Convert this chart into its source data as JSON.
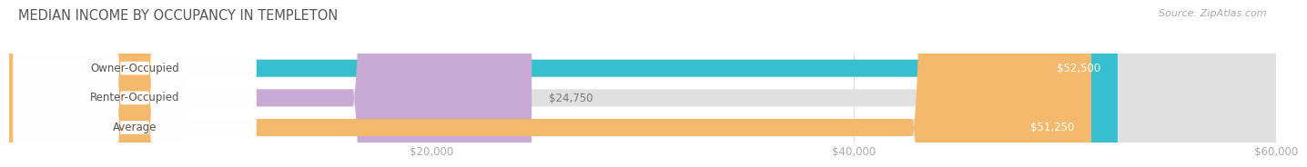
{
  "title": "MEDIAN INCOME BY OCCUPANCY IN TEMPLETON",
  "source": "Source: ZipAtlas.com",
  "categories": [
    "Owner-Occupied",
    "Renter-Occupied",
    "Average"
  ],
  "values": [
    52500,
    24750,
    51250
  ],
  "bar_colors": [
    "#35bfcf",
    "#c9aad4",
    "#f5b96e"
  ],
  "bar_bg_color": "#e0e0e0",
  "value_labels": [
    "$52,500",
    "$24,750",
    "$51,250"
  ],
  "xmin": 0,
  "xmax": 60000,
  "xticks": [
    20000,
    40000,
    60000
  ],
  "xtick_labels": [
    "$20,000",
    "$40,000",
    "$60,000"
  ],
  "title_fontsize": 10.5,
  "label_fontsize": 8.5,
  "value_fontsize": 8.5,
  "source_fontsize": 8,
  "background_color": "#ffffff",
  "bar_height": 0.58,
  "title_color": "#555555",
  "tick_color": "#aaaaaa",
  "grid_color": "#dddddd",
  "value_label_colors": [
    "#ffffff",
    "#777777",
    "#ffffff"
  ],
  "cat_label_colors": [
    "#555555",
    "#555555",
    "#555555"
  ]
}
